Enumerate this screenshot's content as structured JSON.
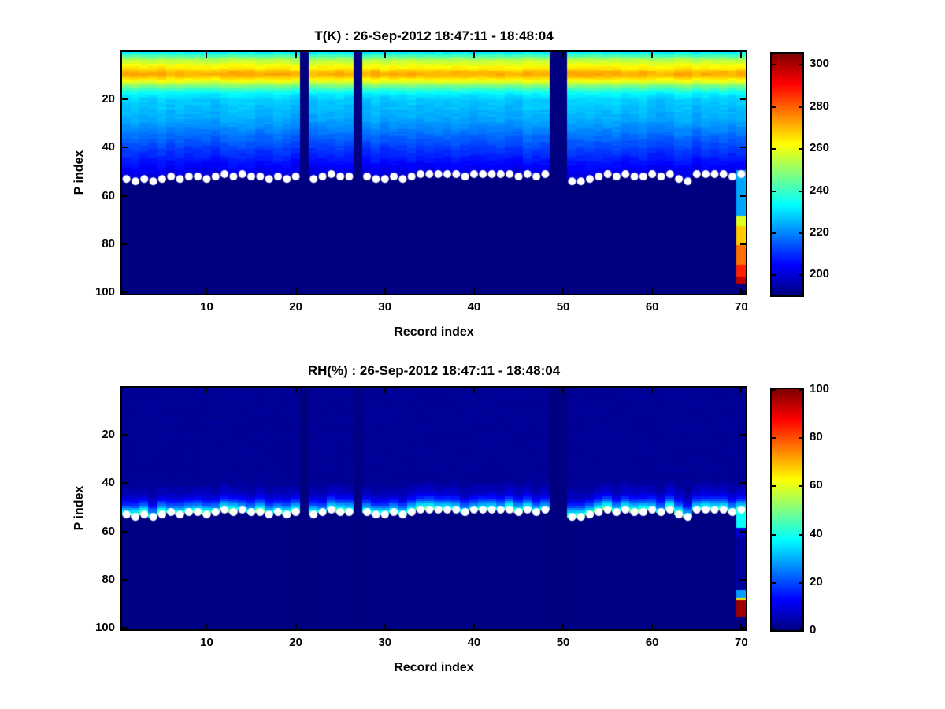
{
  "figure": {
    "background": "#ffffff",
    "text_color": "#000000"
  },
  "chart_data": [
    {
      "type": "heatmap",
      "panel": "top",
      "title": "T(K) : 26-Sep-2012 18:47:11 - 18:48:04",
      "xlabel": "Record index",
      "ylabel": "P index",
      "x_range": [
        1,
        70
      ],
      "y_range": [
        1,
        100
      ],
      "y_axis_reversed": true,
      "x_ticks": [
        10,
        20,
        30,
        40,
        50,
        60,
        70
      ],
      "y_ticks": [
        20,
        40,
        60,
        80,
        100
      ],
      "colormap": "jet",
      "color_axis": [
        190,
        305
      ],
      "colorbar_ticks": [
        200,
        220,
        240,
        260,
        280,
        300
      ],
      "grid": false,
      "legend": "colorbar-right",
      "masked_value": 190,
      "missing_records": [
        21,
        27,
        49,
        50
      ],
      "temperature_profile_by_p_index": [
        232,
        241,
        248,
        253,
        257,
        260,
        263,
        266,
        270,
        271,
        268,
        264,
        259,
        252,
        246,
        240,
        235,
        232,
        230,
        228,
        227,
        227,
        226,
        226,
        225,
        225,
        224,
        224,
        223,
        222,
        221,
        220,
        219,
        218,
        217,
        216,
        215,
        214,
        213,
        212,
        211,
        210,
        209,
        208,
        207,
        206,
        205,
        204,
        203,
        202,
        201,
        200,
        200,
        199,
        199,
        198,
        198,
        197,
        197,
        196,
        196,
        196,
        195,
        195,
        195,
        195,
        194,
        194,
        194,
        194,
        193,
        193,
        193,
        193,
        193,
        192,
        192,
        192,
        192,
        192,
        191,
        191,
        191,
        191,
        191,
        191,
        191,
        191,
        191,
        191,
        190,
        190,
        190,
        190,
        190,
        190,
        190,
        190,
        190,
        190
      ],
      "surface_dot_p_by_record": [
        53,
        54,
        53,
        54,
        53,
        52,
        53,
        52,
        52,
        53,
        52,
        51,
        52,
        51,
        52,
        52,
        53,
        52,
        53,
        52,
        null,
        53,
        52,
        51,
        52,
        52,
        null,
        52,
        53,
        53,
        52,
        53,
        52,
        51,
        51,
        51,
        51,
        51,
        52,
        51,
        51,
        51,
        51,
        51,
        52,
        51,
        52,
        51,
        null,
        null,
        54,
        54,
        53,
        52,
        51,
        52,
        51,
        52,
        52,
        51,
        52,
        51,
        53,
        54,
        51,
        51,
        51,
        51,
        52,
        51
      ],
      "last_record_profile_segments": [
        [
          50,
          68,
          223
        ],
        [
          69,
          72,
          258
        ],
        [
          73,
          80,
          268
        ],
        [
          81,
          88,
          278
        ],
        [
          89,
          93,
          287
        ],
        [
          94,
          96,
          298
        ],
        [
          97,
          100,
          190
        ]
      ],
      "marker": {
        "shape": "circle",
        "color": "#ffffff",
        "radius_px": 5
      }
    },
    {
      "type": "heatmap",
      "panel": "bottom",
      "title": "RH(%) : 26-Sep-2012 18:47:11 - 18:48:04",
      "xlabel": "Record index",
      "ylabel": "P index",
      "x_range": [
        1,
        70
      ],
      "y_range": [
        1,
        100
      ],
      "y_axis_reversed": true,
      "x_ticks": [
        10,
        20,
        30,
        40,
        50,
        60,
        70
      ],
      "y_ticks": [
        20,
        40,
        60,
        80,
        100
      ],
      "colormap": "jet",
      "color_axis": [
        0,
        100
      ],
      "colorbar_ticks": [
        0,
        20,
        40,
        60,
        80,
        100
      ],
      "grid": false,
      "legend": "colorbar-right",
      "background_rh": 2,
      "below_dot_rh": 0.3,
      "glow_rh_by_distance_above_dot": [
        45,
        38,
        30,
        24,
        18,
        14,
        10,
        8,
        6,
        5,
        4,
        3
      ],
      "missing_records": [
        21,
        27,
        49,
        50
      ],
      "surface_dot_p_by_record": [
        53,
        54,
        53,
        54,
        53,
        52,
        53,
        52,
        52,
        53,
        52,
        51,
        52,
        51,
        52,
        52,
        53,
        52,
        53,
        52,
        null,
        53,
        52,
        51,
        52,
        52,
        null,
        52,
        53,
        53,
        52,
        53,
        52,
        51,
        51,
        51,
        51,
        51,
        52,
        51,
        51,
        51,
        51,
        51,
        52,
        51,
        52,
        51,
        null,
        null,
        54,
        54,
        53,
        52,
        51,
        52,
        51,
        52,
        52,
        51,
        52,
        51,
        53,
        54,
        51,
        51,
        51,
        51,
        52,
        51
      ],
      "last_record_profile_segments": [
        [
          52,
          58,
          38
        ],
        [
          59,
          62,
          8
        ],
        [
          63,
          84,
          3
        ],
        [
          85,
          87,
          28
        ],
        [
          88,
          88,
          65
        ],
        [
          89,
          95,
          97
        ],
        [
          96,
          100,
          0.3
        ]
      ],
      "marker": {
        "shape": "circle",
        "color": "#ffffff",
        "radius_px": 5
      }
    }
  ]
}
